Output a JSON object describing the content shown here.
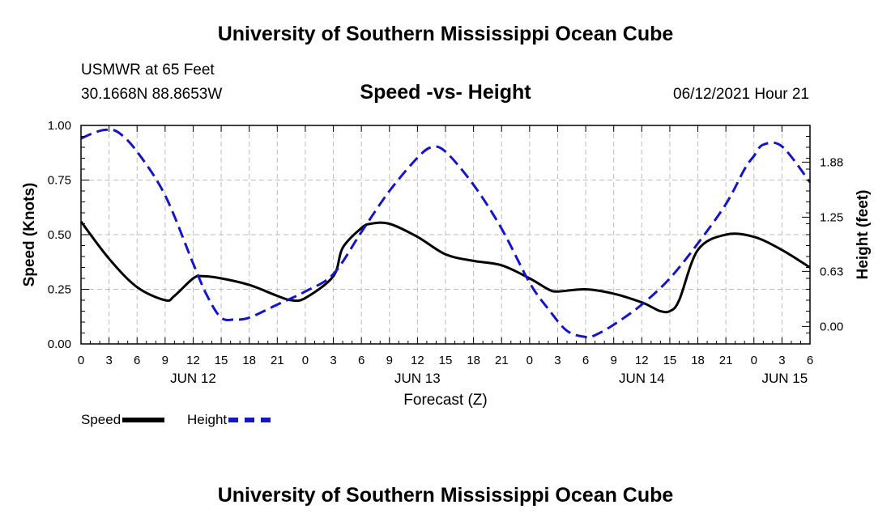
{
  "header": {
    "title": "University of Southern Mississippi Ocean Cube",
    "station": "USMWR at 65 Feet",
    "coords": "30.1668N  88.8653W",
    "chart_title": "Speed -vs- Height",
    "timestamp": "06/12/2021 Hour 21"
  },
  "footer": {
    "title": "University of Southern Mississippi Ocean Cube"
  },
  "legend": {
    "speed_label": "Speed",
    "height_label": "Height"
  },
  "colors": {
    "speed": "#000000",
    "height": "#1515c8",
    "grid": "#bdbdbd"
  },
  "chart_data": {
    "type": "line",
    "title": "Speed -vs- Height",
    "xlabel": "Forecast (Z)",
    "ylabel": "Speed (Knots)",
    "y2label": "Height (feet)",
    "xlim": [
      0,
      78
    ],
    "ylim": [
      0,
      1.0
    ],
    "y2lim": [
      -0.2,
      2.3
    ],
    "grid": true,
    "legend_position": "bottom-left",
    "x_ticks": [
      0,
      3,
      6,
      9,
      12,
      15,
      18,
      21,
      24,
      27,
      30,
      33,
      36,
      39,
      42,
      45,
      48,
      51,
      54,
      57,
      60,
      63,
      66,
      69,
      72,
      75,
      78
    ],
    "x_tick_labels": [
      "0",
      "3",
      "6",
      "9",
      "12",
      "15",
      "18",
      "21",
      "0",
      "3",
      "6",
      "9",
      "12",
      "15",
      "18",
      "21",
      "0",
      "3",
      "6",
      "9",
      "12",
      "15",
      "18",
      "21",
      "0",
      "3",
      "6"
    ],
    "date_labels": [
      {
        "x": 12,
        "label": "JUN 12"
      },
      {
        "x": 36,
        "label": "JUN 13"
      },
      {
        "x": 60,
        "label": "JUN 14"
      },
      {
        "x": 75.3,
        "label": "JUN 15"
      }
    ],
    "y_ticks": [
      0.0,
      0.25,
      0.5,
      0.75,
      1.0
    ],
    "y_tick_labels": [
      "0.00",
      "0.25",
      "0.50",
      "0.75",
      "1.00"
    ],
    "y2_ticks": [
      0.0,
      0.63,
      1.25,
      1.88
    ],
    "y2_tick_labels": [
      "0.00",
      "0.63",
      "1.25",
      "1.88"
    ],
    "series": [
      {
        "name": "Speed",
        "axis": "left",
        "x": [
          0,
          3,
          6,
          9,
          10,
          12,
          13,
          15,
          18,
          21,
          22.5,
          24,
          27,
          28,
          30,
          31,
          33,
          36,
          39,
          42,
          45,
          48,
          50,
          51,
          54,
          57,
          60,
          61,
          62,
          63,
          64,
          66,
          69,
          72,
          75,
          78
        ],
        "values": [
          0.56,
          0.39,
          0.26,
          0.2,
          0.22,
          0.3,
          0.31,
          0.3,
          0.27,
          0.22,
          0.2,
          0.21,
          0.31,
          0.44,
          0.53,
          0.55,
          0.55,
          0.49,
          0.41,
          0.38,
          0.36,
          0.3,
          0.25,
          0.24,
          0.25,
          0.23,
          0.19,
          0.17,
          0.15,
          0.15,
          0.2,
          0.43,
          0.5,
          0.49,
          0.43,
          0.35
        ]
      },
      {
        "name": "Height",
        "axis": "right",
        "x": [
          0,
          1.5,
          2.7,
          4,
          6,
          9,
          12,
          13.5,
          15,
          16.5,
          18,
          21,
          24,
          27,
          30,
          33,
          36,
          37.5,
          39,
          42,
          45,
          48,
          50,
          52,
          54,
          55,
          57,
          60,
          63,
          66,
          69,
          71,
          72,
          73,
          75,
          78
        ],
        "values": [
          2.15,
          2.22,
          2.25,
          2.22,
          2.0,
          1.5,
          0.72,
          0.35,
          0.1,
          0.08,
          0.1,
          0.25,
          0.4,
          0.6,
          1.08,
          1.55,
          1.93,
          2.05,
          2.0,
          1.62,
          1.12,
          0.5,
          0.2,
          -0.05,
          -0.12,
          -0.1,
          0.02,
          0.25,
          0.55,
          0.95,
          1.4,
          1.8,
          1.95,
          2.08,
          2.06,
          1.65
        ]
      }
    ]
  }
}
